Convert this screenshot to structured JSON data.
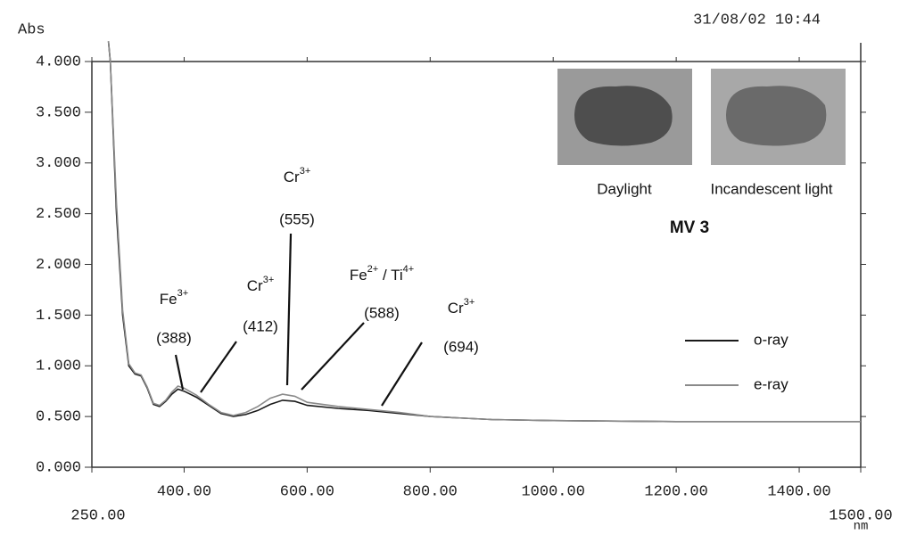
{
  "chart_data": {
    "type": "line",
    "y_label": "Abs",
    "x_label": "nm",
    "timestamp": "31/08/02 10:44",
    "xlim": [
      250,
      1500
    ],
    "ylim": [
      0,
      4
    ],
    "xticks": [
      {
        "value": 250,
        "label": "250.00"
      },
      {
        "value": 400,
        "label": "400.00"
      },
      {
        "value": 600,
        "label": "600.00"
      },
      {
        "value": 800,
        "label": "800.00"
      },
      {
        "value": 1000,
        "label": "1000.00"
      },
      {
        "value": 1200,
        "label": "1200.00"
      },
      {
        "value": 1400,
        "label": "1400.00"
      },
      {
        "value": 1500,
        "label": "1500.00"
      }
    ],
    "yticks": [
      {
        "value": 0,
        "label": "0.000"
      },
      {
        "value": 0.5,
        "label": "0.500"
      },
      {
        "value": 1,
        "label": "1.000"
      },
      {
        "value": 1.5,
        "label": "1.500"
      },
      {
        "value": 2,
        "label": "2.000"
      },
      {
        "value": 2.5,
        "label": "2.500"
      },
      {
        "value": 3,
        "label": "3.000"
      },
      {
        "value": 3.5,
        "label": "3.500"
      },
      {
        "value": 4,
        "label": "4.000"
      }
    ],
    "x": [
      277,
      280,
      290,
      300,
      310,
      320,
      330,
      340,
      350,
      360,
      370,
      380,
      390,
      400,
      420,
      440,
      460,
      480,
      500,
      520,
      540,
      560,
      580,
      600,
      650,
      700,
      750,
      800,
      900,
      1000,
      1200,
      1500
    ],
    "series": [
      {
        "name": "o-ray",
        "color": "#1a1a1a",
        "values": [
          4.2,
          4.0,
          2.5,
          1.5,
          1.0,
          0.92,
          0.9,
          0.78,
          0.62,
          0.6,
          0.65,
          0.72,
          0.77,
          0.75,
          0.69,
          0.61,
          0.53,
          0.5,
          0.52,
          0.56,
          0.62,
          0.66,
          0.65,
          0.61,
          0.58,
          0.56,
          0.53,
          0.5,
          0.47,
          0.46,
          0.45,
          0.45
        ]
      },
      {
        "name": "e-ray",
        "color": "#8a8a8a",
        "values": [
          4.2,
          4.0,
          2.6,
          1.55,
          1.02,
          0.93,
          0.91,
          0.79,
          0.63,
          0.61,
          0.66,
          0.74,
          0.8,
          0.78,
          0.71,
          0.62,
          0.54,
          0.51,
          0.54,
          0.6,
          0.68,
          0.72,
          0.7,
          0.64,
          0.6,
          0.57,
          0.54,
          0.5,
          0.47,
          0.46,
          0.45,
          0.45
        ]
      }
    ],
    "annotations": [
      {
        "label": [
          "Fe",
          "3+"
        ],
        "wavelength": "(388)"
      },
      {
        "label": [
          "Cr",
          "3+"
        ],
        "wavelength": "(412)"
      },
      {
        "label": [
          "Cr",
          "3+"
        ],
        "wavelength": "(555)"
      },
      {
        "label": [
          "Fe",
          "2+",
          " / Ti",
          "4+"
        ],
        "wavelength": "(588)"
      },
      {
        "label": [
          "Cr",
          "3+"
        ],
        "wavelength": "(694)"
      }
    ],
    "photos": [
      {
        "caption": "Daylight"
      },
      {
        "caption": "Incandescent light"
      }
    ],
    "sample": "MV 3"
  }
}
